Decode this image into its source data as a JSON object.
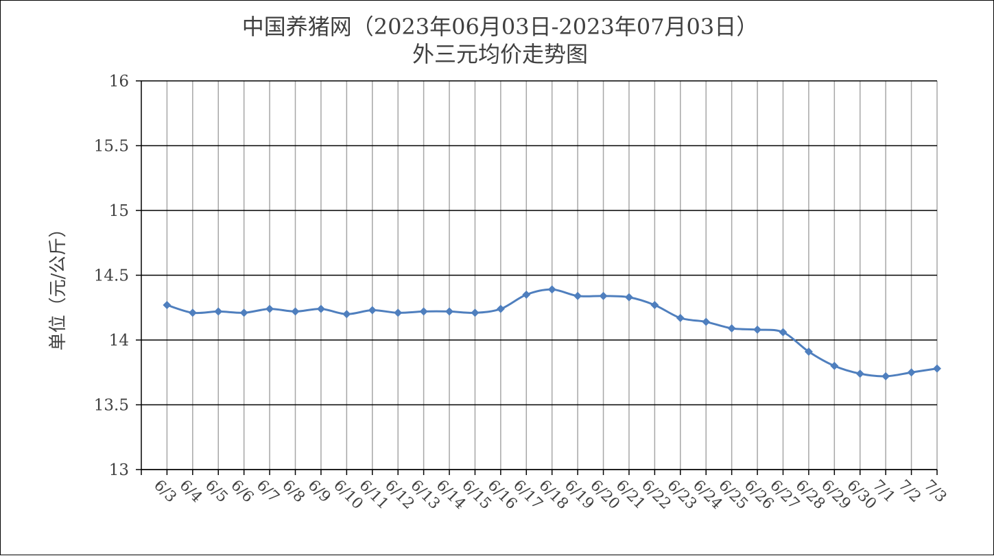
{
  "chart_data": {
    "type": "line",
    "title": "中国养猪网（2023年06月03日-2023年07月03日）",
    "subtitle": "外三元均价走势图",
    "xlabel": "",
    "ylabel": "单位（元/公斤）",
    "ylim": [
      13,
      16
    ],
    "yticks": [
      "16",
      "15.5",
      "15",
      "14.5",
      "14",
      "13.5",
      "13"
    ],
    "ytick_values": [
      16,
      15.5,
      15,
      14.5,
      14,
      13.5,
      13
    ],
    "grid": true,
    "legend": "none",
    "categories": [
      "6/3",
      "6/4",
      "6/5",
      "6/6",
      "6/7",
      "6/8",
      "6/9",
      "6/10",
      "6/11",
      "6/12",
      "6/13",
      "6/14",
      "6/15",
      "6/16",
      "6/17",
      "6/18",
      "6/19",
      "6/20",
      "6/21",
      "6/22",
      "6/23",
      "6/24",
      "6/25",
      "6/26",
      "6/27",
      "6/28",
      "6/29",
      "6/30",
      "7/1",
      "7/2",
      "7/3"
    ],
    "series": [
      {
        "values": [
          14.27,
          14.21,
          14.22,
          14.21,
          14.24,
          14.22,
          14.24,
          14.2,
          14.23,
          14.21,
          14.22,
          14.22,
          14.21,
          14.24,
          14.35,
          14.39,
          14.34,
          14.34,
          14.33,
          14.27,
          14.17,
          14.14,
          14.09,
          14.08,
          14.06,
          13.91,
          13.8,
          13.74,
          13.72,
          13.75,
          13.78
        ],
        "color": "#4f7fbe"
      }
    ]
  }
}
